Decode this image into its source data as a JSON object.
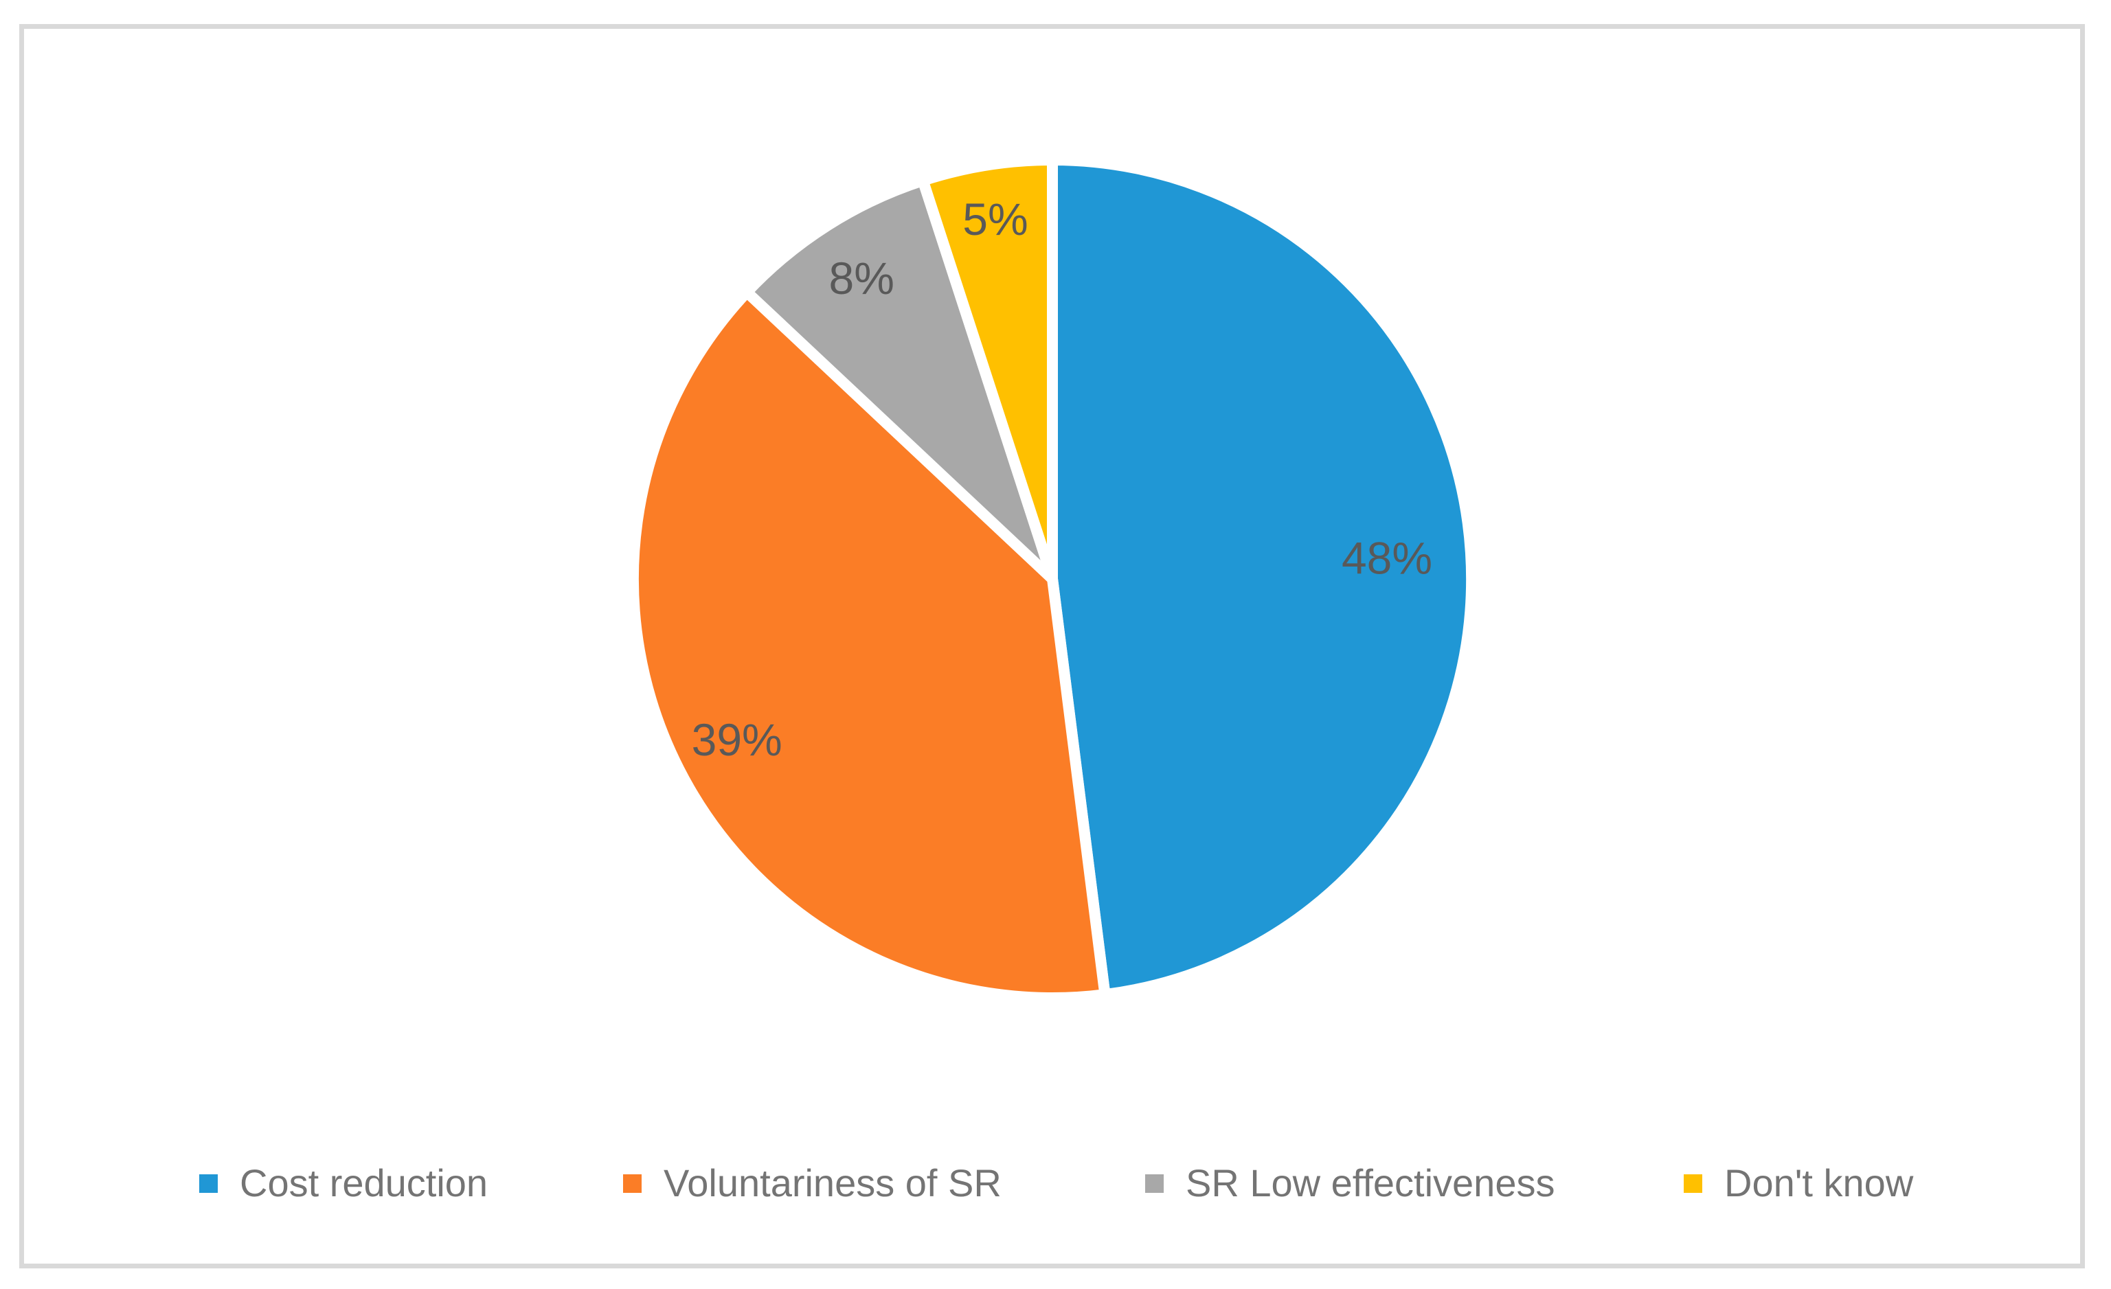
{
  "figure": {
    "background_color": "#FFFFFF",
    "frame_color": "#D9D9D9"
  },
  "chart_data": {
    "type": "pie",
    "title": "",
    "categories": [
      "Cost reduction",
      "Voluntariness of SR",
      "SR Low effectiveness",
      "Don't know"
    ],
    "values": [
      48,
      39,
      8,
      5
    ],
    "data_labels": [
      "48%",
      "39%",
      "8%",
      "5%"
    ],
    "colors": [
      "#2097D5",
      "#FB7D26",
      "#A8A8A8",
      "#FFC000"
    ],
    "data_label_color": "#595959",
    "slice_border_color": "#FFFFFF",
    "start_angle_deg": 0,
    "direction": "clockwise",
    "legend": {
      "position": "bottom",
      "text_color": "#747474",
      "items": [
        {
          "label": "Cost reduction",
          "color": "#2097D5"
        },
        {
          "label": "Voluntariness of SR",
          "color": "#FB7D26"
        },
        {
          "label": "SR Low effectiveness",
          "color": "#A8A8A8"
        },
        {
          "label": "Don't know",
          "color": "#FFC000"
        }
      ]
    }
  }
}
